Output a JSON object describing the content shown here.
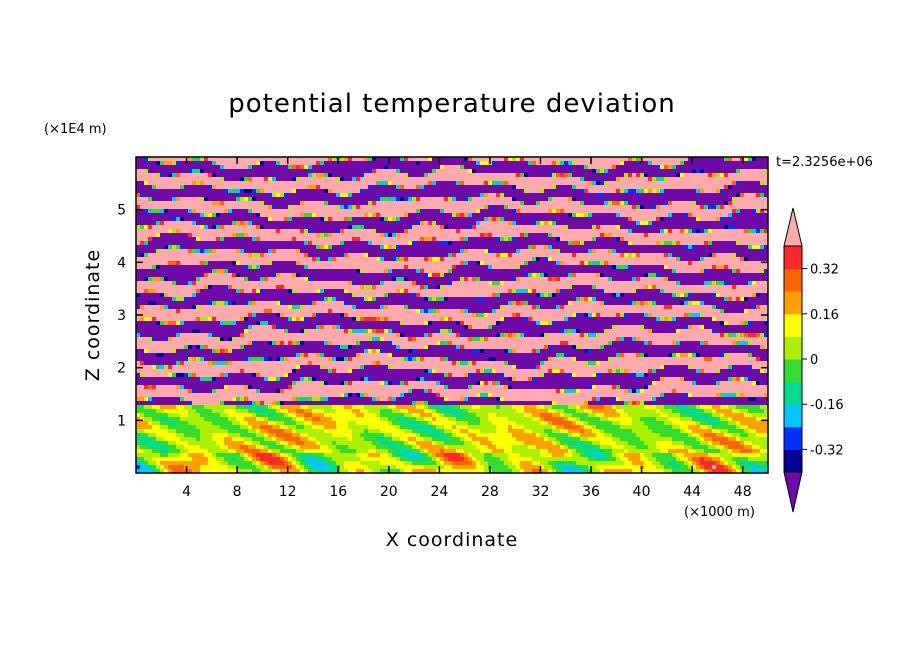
{
  "chart_data": {
    "type": "heatmap",
    "title": "potential temperature deviation",
    "xlabel": "X coordinate",
    "ylabel": "Z coordinate",
    "x_unit": "(×1000 m)",
    "y_unit": "(×1E4 m)",
    "time_label": "t=2.3256e+06",
    "xlim": [
      0,
      50
    ],
    "ylim": [
      0,
      6
    ],
    "x_ticks": [
      4,
      8,
      12,
      16,
      20,
      24,
      28,
      32,
      36,
      40,
      44,
      48
    ],
    "y_ticks": [
      1,
      2,
      3,
      4,
      5
    ],
    "colorbar": {
      "levels": [
        -0.4,
        -0.32,
        -0.24,
        -0.16,
        -0.08,
        0,
        0.08,
        0.16,
        0.24,
        0.32,
        0.4
      ],
      "labels": [
        "0.32",
        "0.16",
        "0",
        "-0.16",
        "-0.32"
      ],
      "label_values": [
        0.32,
        0.16,
        0,
        -0.16,
        -0.32
      ],
      "colors_low_to_high": [
        "#000096",
        "#0032ff",
        "#00c8ff",
        "#00dc8c",
        "#32dc32",
        "#aaf000",
        "#ffff00",
        "#ffa000",
        "#ff6400",
        "#ff2828"
      ],
      "under_color": "#6e0aaa",
      "over_color": "#ffaaaa",
      "extend": "both"
    },
    "regions": [
      {
        "z_range": [
          0,
          1.3
        ],
        "description": "mostly green/yellow-green with cyan, blue and yellow-orange patches"
      },
      {
        "z_range": [
          1.3,
          6
        ],
        "description": "alternating horizontal layers of pink (>0.4) and purple (<-0.4) with thin colored transitions"
      }
    ]
  },
  "colors": {
    "frame": "#000000",
    "background": "#ffffff"
  }
}
